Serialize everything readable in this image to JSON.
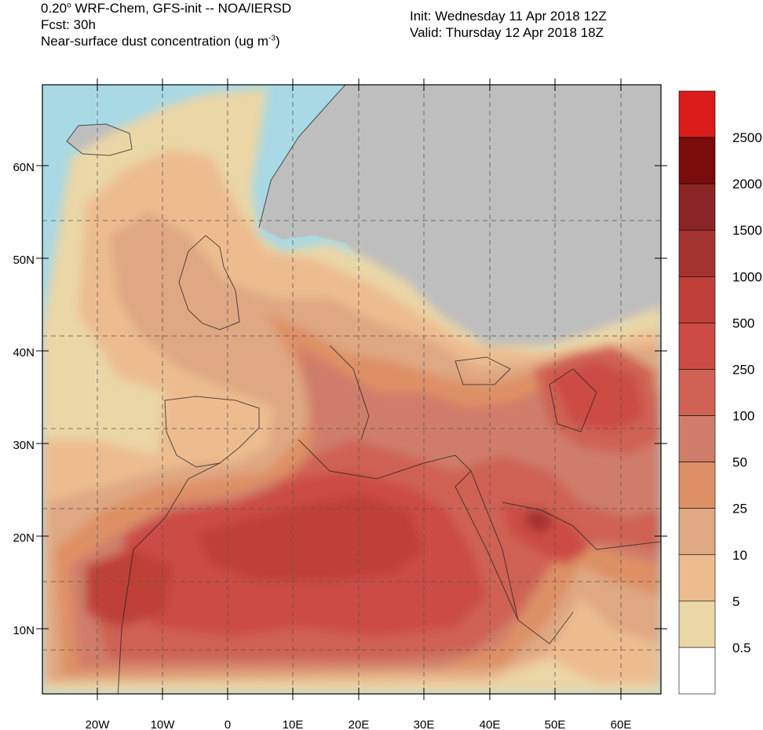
{
  "header": {
    "line1_pre": "0.20",
    "line1_sup": "o",
    "line1_post": " WRF-Chem, GFS-init -- NOA/IERSD",
    "line2": "Fcst: 30h",
    "line3_pre": "Near-surface dust concentration (ug m",
    "line3_sup": "-3",
    "line3_post": ")",
    "init": "Init: Wednesday 11 Apr 2018  12Z",
    "valid": "Valid: Thursday 12 Apr 2018  18Z"
  },
  "map": {
    "lon_labels": [
      "20W",
      "10W",
      "0",
      "10E",
      "20E",
      "30E",
      "40E",
      "50E",
      "60E"
    ],
    "lat_labels": [
      "60N",
      "50N",
      "40N",
      "30N",
      "20N",
      "10N"
    ],
    "colors": {
      "sea": "#a9d9e5",
      "land_no_dust": "#bebebe",
      "border": "#222222",
      "grid": "#555555"
    }
  },
  "colorbar": {
    "labels": [
      "2500",
      "2000",
      "1500",
      "1000",
      "500",
      "250",
      "100",
      "50",
      "25",
      "10",
      "5",
      "0.5"
    ],
    "colors": [
      "#dc1b1b",
      "#7a0c0c",
      "#8b2525",
      "#a53331",
      "#bf3f38",
      "#cc4c45",
      "#cf6252",
      "#cf7d6a",
      "#de9065",
      "#dfa782",
      "#ecbc8f",
      "#ebd6a6",
      "#ffffff"
    ]
  }
}
